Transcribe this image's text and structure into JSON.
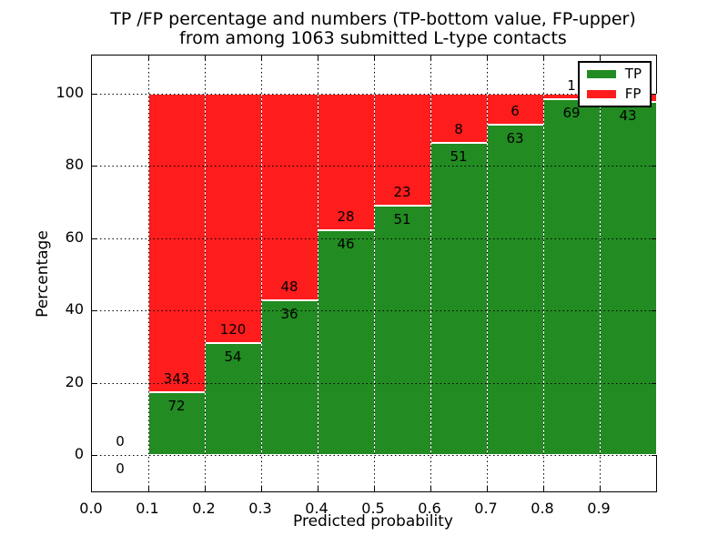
{
  "chart_data": {
    "type": "bar",
    "stacked": true,
    "title_line1": "TP /FP percentage and numbers (TP-bottom value, FP-upper)",
    "title_line2": "from among 1063 submitted L-type contacts",
    "total_submitted": 1063,
    "xlabel": "Predicted probability",
    "ylabel": "Percentage",
    "xlim": [
      0.0,
      1.0
    ],
    "ylim": [
      -10,
      110
    ],
    "grid": true,
    "bin_edges": [
      0.0,
      0.1,
      0.2,
      0.3,
      0.4,
      0.5,
      0.6,
      0.7,
      0.8,
      0.9,
      1.0
    ],
    "categories": [
      "0.0-0.1",
      "0.1-0.2",
      "0.2-0.3",
      "0.3-0.4",
      "0.4-0.5",
      "0.5-0.6",
      "0.6-0.7",
      "0.7-0.8",
      "0.8-0.9",
      "0.9-1.0"
    ],
    "x_tick_labels": [
      "0.0",
      "0.1",
      "0.2",
      "0.3",
      "0.4",
      "0.5",
      "0.6",
      "0.7",
      "0.8",
      "0.9"
    ],
    "y_ticks": [
      0,
      20,
      40,
      60,
      80,
      100
    ],
    "y_tick_labels": [
      "0",
      "20",
      "40",
      "60",
      "80",
      "100"
    ],
    "bars_normalized_to_percent_total": 100,
    "series": [
      {
        "name": "TP",
        "color": "#228b22",
        "counts": [
          0,
          72,
          54,
          36,
          46,
          51,
          51,
          63,
          69,
          43
        ]
      },
      {
        "name": "FP",
        "color": "#ff1c1c",
        "counts": [
          0,
          343,
          120,
          48,
          28,
          23,
          8,
          6,
          1,
          1
        ]
      }
    ],
    "tp_percent_of_bin": [
      0,
      17.3,
      31.0,
      42.9,
      62.2,
      68.9,
      86.4,
      91.3,
      98.6,
      97.7
    ],
    "legend": {
      "position": "upper right",
      "entries": [
        {
          "label": "TP",
          "color": "#228b22"
        },
        {
          "label": "FP",
          "color": "#ff1c1c"
        }
      ]
    }
  }
}
